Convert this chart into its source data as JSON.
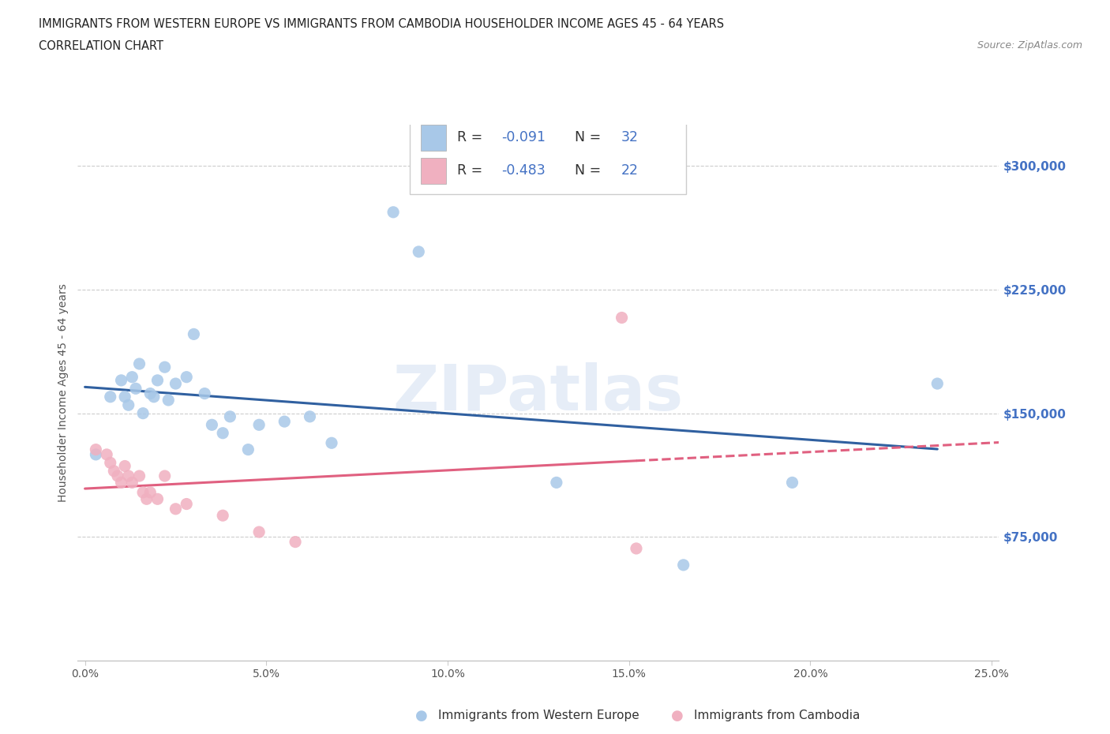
{
  "title_line1": "IMMIGRANTS FROM WESTERN EUROPE VS IMMIGRANTS FROM CAMBODIA HOUSEHOLDER INCOME AGES 45 - 64 YEARS",
  "title_line2": "CORRELATION CHART",
  "source_text": "Source: ZipAtlas.com",
  "ylabel": "Householder Income Ages 45 - 64 years",
  "xlim": [
    -0.002,
    0.252
  ],
  "ylim": [
    0,
    325000
  ],
  "ytick_labels": [
    "$75,000",
    "$150,000",
    "$225,000",
    "$300,000"
  ],
  "ytick_values": [
    75000,
    150000,
    225000,
    300000
  ],
  "xtick_labels": [
    "0.0%",
    "5.0%",
    "10.0%",
    "15.0%",
    "20.0%",
    "25.0%"
  ],
  "xtick_values": [
    0.0,
    0.05,
    0.1,
    0.15,
    0.2,
    0.25
  ],
  "legend_label1": "Immigrants from Western Europe",
  "legend_label2": "Immigrants from Cambodia",
  "R1": -0.091,
  "N1": 32,
  "R2": -0.483,
  "N2": 22,
  "watermark": "ZIPatlas",
  "color_blue": "#a8c8e8",
  "color_blue_line": "#3060a0",
  "color_pink": "#f0b0c0",
  "color_pink_line": "#e06080",
  "background_color": "#ffffff",
  "blue_scatter_x": [
    0.003,
    0.007,
    0.01,
    0.011,
    0.012,
    0.013,
    0.014,
    0.015,
    0.016,
    0.018,
    0.019,
    0.02,
    0.022,
    0.023,
    0.025,
    0.028,
    0.03,
    0.033,
    0.035,
    0.038,
    0.04,
    0.045,
    0.048,
    0.055,
    0.062,
    0.068,
    0.085,
    0.092,
    0.13,
    0.165,
    0.195,
    0.235
  ],
  "blue_scatter_y": [
    125000,
    160000,
    170000,
    160000,
    155000,
    172000,
    165000,
    180000,
    150000,
    162000,
    160000,
    170000,
    178000,
    158000,
    168000,
    172000,
    198000,
    162000,
    143000,
    138000,
    148000,
    128000,
    143000,
    145000,
    148000,
    132000,
    272000,
    248000,
    108000,
    58000,
    108000,
    168000
  ],
  "pink_scatter_x": [
    0.003,
    0.006,
    0.007,
    0.008,
    0.009,
    0.01,
    0.011,
    0.012,
    0.013,
    0.015,
    0.016,
    0.017,
    0.018,
    0.02,
    0.022,
    0.025,
    0.028,
    0.038,
    0.048,
    0.058,
    0.148,
    0.152
  ],
  "pink_scatter_y": [
    128000,
    125000,
    120000,
    115000,
    112000,
    108000,
    118000,
    112000,
    108000,
    112000,
    102000,
    98000,
    102000,
    98000,
    112000,
    92000,
    95000,
    88000,
    78000,
    72000,
    208000,
    68000
  ]
}
